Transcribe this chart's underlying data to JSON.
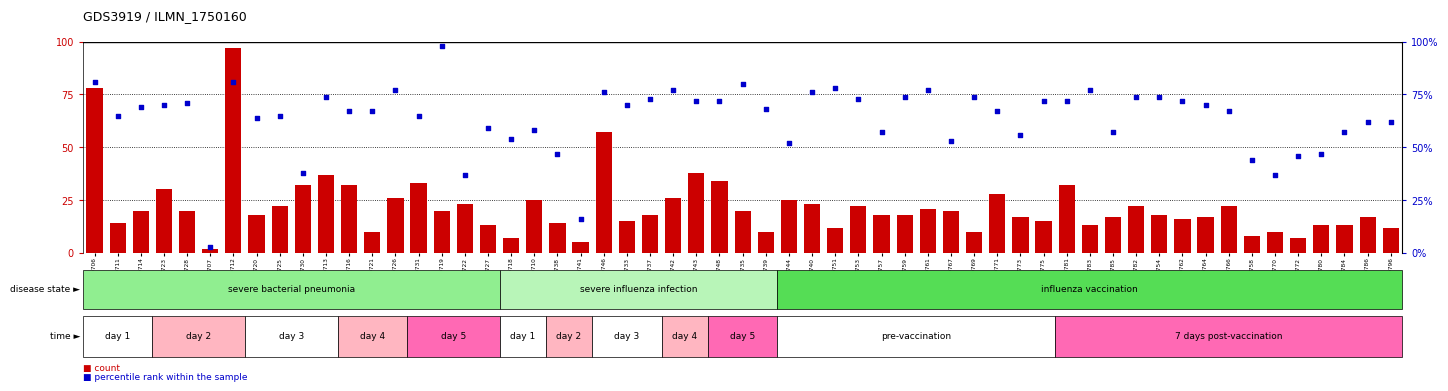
{
  "title": "GDS3919 / ILMN_1750160",
  "samples": [
    "GSM509706",
    "GSM509711",
    "GSM509714",
    "GSM509723",
    "GSM509728",
    "GSM509707",
    "GSM509712",
    "GSM509720",
    "GSM509725",
    "GSM509730",
    "GSM509713",
    "GSM509716",
    "GSM509721",
    "GSM509726",
    "GSM509731",
    "GSM509719",
    "GSM509722",
    "GSM509727",
    "GSM509718",
    "GSM509710",
    "GSM509738",
    "GSM509741",
    "GSM509746",
    "GSM509733",
    "GSM509737",
    "GSM509742",
    "GSM509743",
    "GSM509748",
    "GSM509735",
    "GSM509739",
    "GSM509744",
    "GSM509740",
    "GSM509751",
    "GSM509753",
    "GSM509757",
    "GSM509759",
    "GSM509761",
    "GSM509767",
    "GSM509769",
    "GSM509771",
    "GSM509773",
    "GSM509775",
    "GSM509781",
    "GSM509783",
    "GSM509785",
    "GSM509782",
    "GSM509754",
    "GSM509762",
    "GSM509764",
    "GSM509766",
    "GSM509758",
    "GSM509770",
    "GSM509772",
    "GSM509780",
    "GSM509784",
    "GSM509786",
    "GSM509796"
  ],
  "bar_values": [
    78,
    14,
    20,
    30,
    20,
    2,
    97,
    18,
    22,
    32,
    37,
    32,
    10,
    26,
    33,
    20,
    23,
    13,
    7,
    25,
    14,
    5,
    57,
    15,
    18,
    26,
    38,
    34,
    20,
    10,
    25,
    23,
    12,
    22,
    18,
    18,
    21,
    20,
    10,
    28,
    17,
    15,
    32,
    13,
    17,
    22,
    18,
    16,
    17,
    22,
    8,
    10,
    7,
    13,
    13,
    17,
    12
  ],
  "dot_values": [
    81,
    65,
    69,
    70,
    71,
    3,
    81,
    64,
    65,
    38,
    74,
    67,
    67,
    77,
    65,
    98,
    37,
    59,
    54,
    58,
    47,
    16,
    76,
    70,
    73,
    77,
    72,
    72,
    80,
    68,
    52,
    76,
    78,
    73,
    57,
    74,
    77,
    53,
    74,
    67,
    56,
    72,
    72,
    77,
    57,
    74,
    74,
    72,
    70,
    67,
    44,
    37,
    46,
    47,
    57,
    62,
    62
  ],
  "disease_state_segments": [
    {
      "label": "severe bacterial pneumonia",
      "start": 0,
      "end": 18,
      "color": "#90EE90"
    },
    {
      "label": "severe influenza infection",
      "start": 18,
      "end": 30,
      "color": "#b8f5b8"
    },
    {
      "label": "influenza vaccination",
      "start": 30,
      "end": 57,
      "color": "#55DD55"
    }
  ],
  "time_segments": [
    {
      "label": "day 1",
      "start": 0,
      "end": 3,
      "color": "#FFFFFF"
    },
    {
      "label": "day 2",
      "start": 3,
      "end": 7,
      "color": "#FFB6C1"
    },
    {
      "label": "day 3",
      "start": 7,
      "end": 11,
      "color": "#FFFFFF"
    },
    {
      "label": "day 4",
      "start": 11,
      "end": 14,
      "color": "#FFB6C1"
    },
    {
      "label": "day 5",
      "start": 14,
      "end": 18,
      "color": "#FF69B4"
    },
    {
      "label": "day 1",
      "start": 18,
      "end": 20,
      "color": "#FFFFFF"
    },
    {
      "label": "day 2",
      "start": 20,
      "end": 22,
      "color": "#FFB6C1"
    },
    {
      "label": "day 3",
      "start": 22,
      "end": 25,
      "color": "#FFFFFF"
    },
    {
      "label": "day 4",
      "start": 25,
      "end": 27,
      "color": "#FFB6C1"
    },
    {
      "label": "day 5",
      "start": 27,
      "end": 30,
      "color": "#FF69B4"
    },
    {
      "label": "pre-vaccination",
      "start": 30,
      "end": 42,
      "color": "#FFFFFF"
    },
    {
      "label": "7 days post-vaccination",
      "start": 42,
      "end": 57,
      "color": "#FF69B4"
    }
  ],
  "bar_color": "#CC0000",
  "dot_color": "#0000CC",
  "ylim": [
    0,
    100
  ],
  "yticks": [
    0,
    25,
    50,
    75,
    100
  ],
  "grid_lines": [
    25,
    50,
    75
  ],
  "legend_items": [
    {
      "color": "#CC0000",
      "marker": "s",
      "label": "count"
    },
    {
      "color": "#0000CC",
      "marker": "s",
      "label": "percentile rank within the sample"
    }
  ]
}
